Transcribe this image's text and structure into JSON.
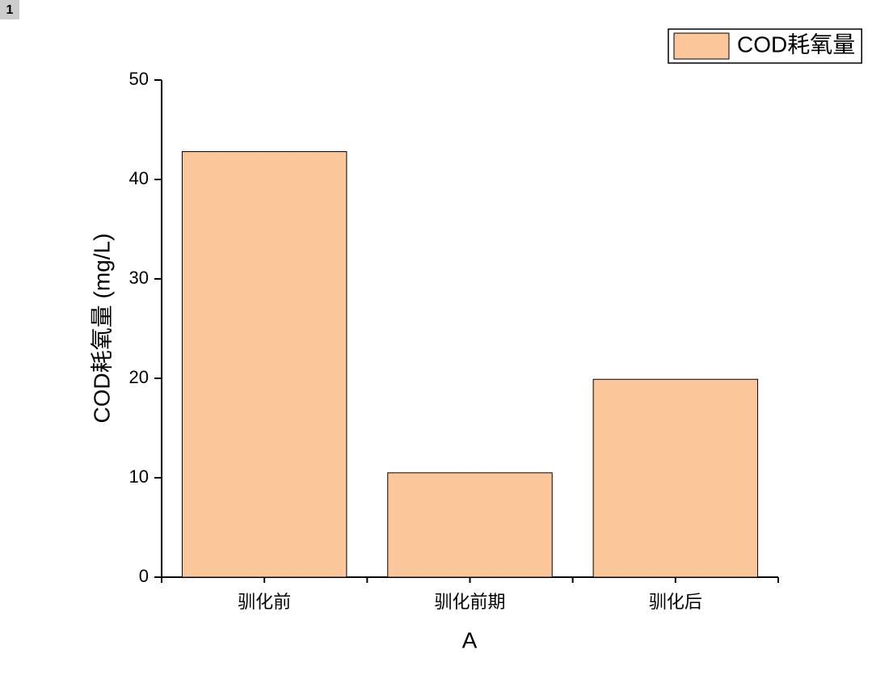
{
  "panel_label": "1",
  "chart_data": {
    "type": "bar",
    "categories": [
      "驯化前",
      "驯化前期",
      "驯化后"
    ],
    "series": [
      {
        "name": "COD耗氧量",
        "color": "#fbc699",
        "values": [
          42.8,
          10.5,
          19.9
        ]
      }
    ],
    "x_label": "A",
    "y_label": "COD耗氧量 (mg/L)",
    "ylim": [
      0,
      50
    ],
    "yticks": [
      0,
      10,
      20,
      30,
      40,
      50
    ],
    "grid": false,
    "legend": "top-right"
  }
}
